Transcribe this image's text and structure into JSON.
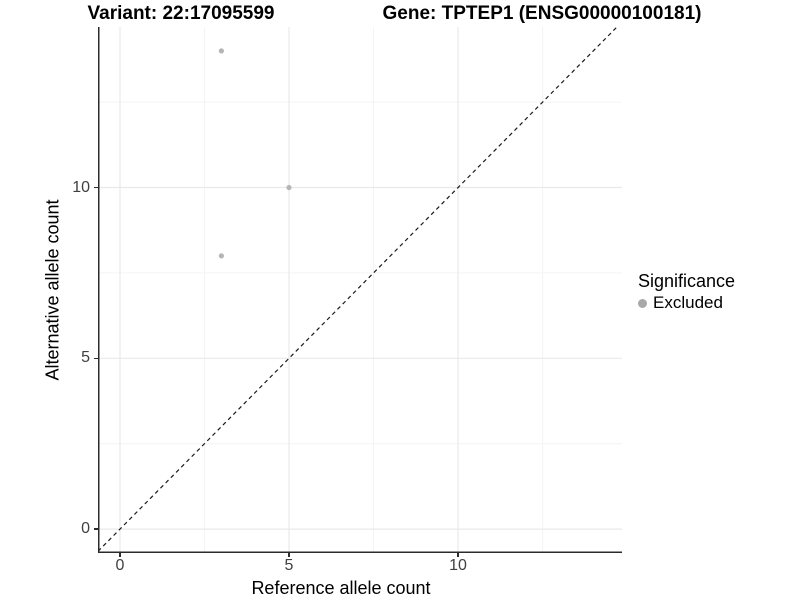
{
  "titles": {
    "left": "Variant: 22:17095599",
    "right": "Gene: TPTEP1 (ENSG00000100181)"
  },
  "axes": {
    "x_label": "Reference allele count",
    "y_label": "Alternative allele count"
  },
  "legend": {
    "title": "Significance",
    "entries": [
      {
        "label": "Excluded",
        "color": "#a8a8a8",
        "marker": "circle-icon"
      }
    ]
  },
  "chart_data": {
    "type": "scatter",
    "title": "Variant: 22:17095599 — Gene: TPTEP1 (ENSG00000100181)",
    "xlabel": "Reference allele count",
    "ylabel": "Alternative allele count",
    "xlim": [
      -0.65,
      14.85
    ],
    "ylim": [
      -0.7,
      14.7
    ],
    "x_ticks": [
      0,
      5,
      10
    ],
    "y_ticks": [
      0,
      5,
      10
    ],
    "minor_tick_step": 2.5,
    "grid": "major+minor",
    "legend_position": "right",
    "series": [
      {
        "name": "Excluded",
        "color": "#b5b5b5",
        "points": [
          {
            "x": 3,
            "y": 14
          },
          {
            "x": 5,
            "y": 10
          },
          {
            "x": 3,
            "y": 8
          }
        ]
      }
    ],
    "reference_line": {
      "type": "identity y=x",
      "style": "dashed",
      "color": "#1a1a1a"
    },
    "style_colors": {
      "major_grid": "#e9e9e9",
      "minor_grid": "#f4f4f4",
      "axis_line": "#2b2b2b",
      "tick_label": "#404040"
    }
  }
}
